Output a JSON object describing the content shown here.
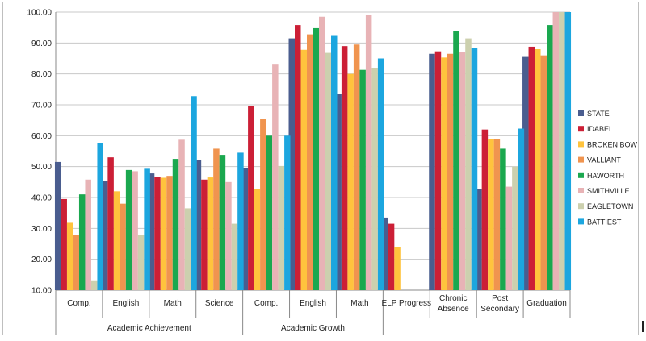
{
  "chart_data": {
    "type": "bar",
    "ylim": [
      10,
      100
    ],
    "y_ticks": [
      "10.00",
      "20.00",
      "30.00",
      "40.00",
      "50.00",
      "60.00",
      "70.00",
      "80.00",
      "90.00",
      "100.00"
    ],
    "grid": true,
    "legend_position": "right",
    "categories": [
      {
        "label": "Comp.",
        "lines": [
          "Comp."
        ]
      },
      {
        "label": "English",
        "lines": [
          "English"
        ]
      },
      {
        "label": "Math",
        "lines": [
          "Math"
        ]
      },
      {
        "label": "Science",
        "lines": [
          "Science"
        ]
      },
      {
        "label": "Comp.",
        "lines": [
          "Comp."
        ]
      },
      {
        "label": "English",
        "lines": [
          "English"
        ]
      },
      {
        "label": "Math",
        "lines": [
          "Math"
        ]
      },
      {
        "label": "ELP Progress",
        "lines": [
          "ELP Progress"
        ]
      },
      {
        "label": "Chronic Absence",
        "lines": [
          "Chronic",
          "Absence"
        ]
      },
      {
        "label": "Post Secondary",
        "lines": [
          "Post",
          "Secondary"
        ]
      },
      {
        "label": "Graduation",
        "lines": [
          "Graduation"
        ]
      }
    ],
    "groups": [
      {
        "label": "Academic Achievement",
        "start": 0,
        "end": 3
      },
      {
        "label": "Academic Growth",
        "start": 4,
        "end": 6
      }
    ],
    "series": [
      {
        "name": "STATE",
        "color": "#4a5d8f",
        "values": [
          51.5,
          45.3,
          47.8,
          52.0,
          49.5,
          91.5,
          73.5,
          33.5,
          86.5,
          42.7,
          85.5
        ]
      },
      {
        "name": "IDABEL",
        "color": "#cc1f36",
        "values": [
          39.5,
          53.0,
          46.7,
          45.8,
          69.5,
          95.8,
          89.0,
          31.5,
          87.3,
          62.0,
          88.8
        ]
      },
      {
        "name": "BROKEN BOW",
        "color": "#ffc33d",
        "values": [
          31.8,
          42.0,
          46.4,
          46.5,
          42.8,
          87.8,
          80.0,
          24.0,
          85.3,
          59.0,
          88.0
        ]
      },
      {
        "name": "VALLIANT",
        "color": "#f0944f",
        "values": [
          28.0,
          38.0,
          47.0,
          55.8,
          65.5,
          92.8,
          89.5,
          null,
          86.5,
          58.8,
          86.0
        ]
      },
      {
        "name": "HAWORTH",
        "color": "#1aa84f",
        "values": [
          41.0,
          48.9,
          52.5,
          53.8,
          60.0,
          94.8,
          81.3,
          null,
          94.0,
          55.8,
          95.8
        ]
      },
      {
        "name": "SMITHVILLE",
        "color": "#e8b3b6",
        "values": [
          45.8,
          48.5,
          58.7,
          45.0,
          83.0,
          98.5,
          99.0,
          null,
          87.0,
          43.5,
          100.0
        ]
      },
      {
        "name": "EAGLETOWN",
        "color": "#ccd0ae",
        "values": [
          13.2,
          27.8,
          36.5,
          31.5,
          50.2,
          86.8,
          82.0,
          null,
          91.5,
          50.0,
          100.0
        ]
      },
      {
        "name": "BATTIEST",
        "color": "#1ca6df",
        "values": [
          57.5,
          49.3,
          72.8,
          54.5,
          60.0,
          92.3,
          85.0,
          null,
          88.5,
          62.3,
          100.0
        ]
      }
    ]
  }
}
